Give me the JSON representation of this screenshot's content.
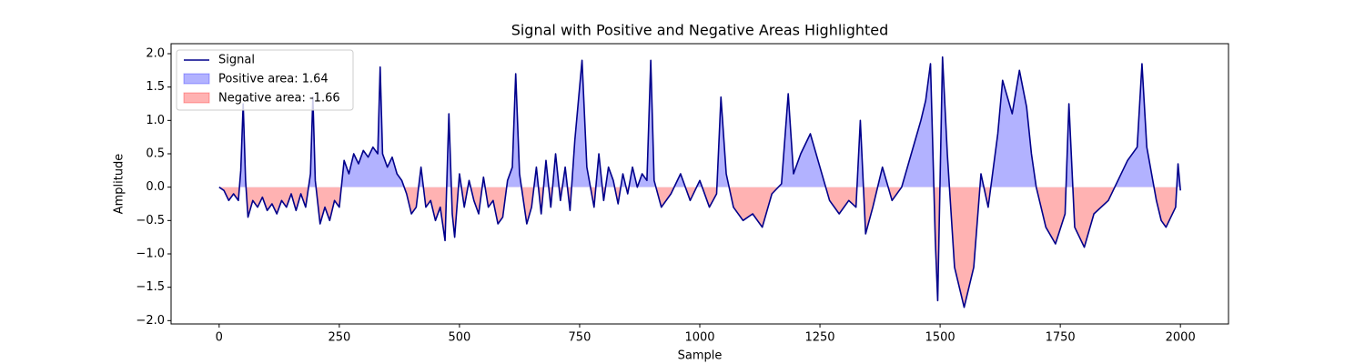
{
  "chart_data": {
    "type": "line",
    "title": "Signal with Positive and Negative Areas Highlighted",
    "x_label": "Sample",
    "y_label": "Amplitude",
    "x": [
      0,
      10,
      20,
      30,
      40,
      45,
      50,
      55,
      60,
      70,
      80,
      90,
      100,
      110,
      120,
      130,
      140,
      150,
      160,
      170,
      180,
      190,
      195,
      200,
      210,
      220,
      230,
      240,
      250,
      260,
      270,
      280,
      290,
      300,
      310,
      320,
      330,
      335,
      340,
      350,
      360,
      370,
      380,
      390,
      400,
      410,
      420,
      430,
      440,
      450,
      460,
      470,
      478,
      485,
      490,
      500,
      510,
      520,
      530,
      540,
      550,
      560,
      570,
      580,
      590,
      600,
      610,
      617,
      625,
      640,
      650,
      660,
      670,
      680,
      690,
      700,
      710,
      720,
      730,
      740,
      755,
      765,
      780,
      790,
      800,
      810,
      820,
      830,
      840,
      850,
      860,
      870,
      880,
      890,
      898,
      905,
      920,
      940,
      960,
      980,
      1000,
      1020,
      1035,
      1044,
      1055,
      1070,
      1090,
      1110,
      1130,
      1150,
      1170,
      1184,
      1195,
      1210,
      1230,
      1250,
      1270,
      1290,
      1310,
      1325,
      1334,
      1345,
      1360,
      1380,
      1400,
      1420,
      1440,
      1460,
      1470,
      1480,
      1490,
      1495,
      1505,
      1515,
      1530,
      1550,
      1570,
      1585,
      1600,
      1620,
      1630,
      1650,
      1665,
      1680,
      1690,
      1700,
      1720,
      1740,
      1760,
      1768,
      1780,
      1800,
      1820,
      1850,
      1870,
      1890,
      1910,
      1920,
      1930,
      1950,
      1960,
      1970,
      1990,
      1995,
      2000
    ],
    "series": [
      {
        "name": "Signal",
        "color": "#00008b",
        "values": [
          0,
          -0.05,
          -0.2,
          -0.1,
          -0.2,
          0.25,
          1.25,
          0.1,
          -0.45,
          -0.2,
          -0.3,
          -0.15,
          -0.35,
          -0.25,
          -0.4,
          -0.2,
          -0.3,
          -0.1,
          -0.35,
          -0.1,
          -0.3,
          0.2,
          1.35,
          0.1,
          -0.55,
          -0.3,
          -0.5,
          -0.2,
          -0.3,
          0.4,
          0.2,
          0.5,
          0.35,
          0.55,
          0.45,
          0.6,
          0.5,
          1.8,
          0.5,
          0.3,
          0.45,
          0.2,
          0.1,
          -0.1,
          -0.4,
          -0.3,
          0.3,
          -0.3,
          -0.2,
          -0.5,
          -0.3,
          -0.8,
          1.1,
          -0.4,
          -0.75,
          0.2,
          -0.3,
          0.1,
          -0.2,
          -0.4,
          0.15,
          -0.3,
          -0.2,
          -0.55,
          -0.45,
          0.1,
          0.3,
          1.7,
          0.2,
          -0.55,
          -0.3,
          0.3,
          -0.4,
          0.4,
          -0.3,
          0.5,
          -0.2,
          0.3,
          -0.35,
          0.7,
          1.9,
          0.3,
          -0.3,
          0.5,
          -0.2,
          0.3,
          0.1,
          -0.25,
          0.2,
          -0.1,
          0.3,
          0,
          0.2,
          0.1,
          1.9,
          0.1,
          -0.3,
          -0.1,
          0.2,
          -0.2,
          0.1,
          -0.3,
          -0.1,
          1.35,
          0.2,
          -0.3,
          -0.5,
          -0.4,
          -0.6,
          -0.1,
          0.05,
          1.4,
          0.2,
          0.5,
          0.8,
          0.3,
          -0.2,
          -0.4,
          -0.2,
          -0.3,
          1.0,
          -0.7,
          -0.3,
          0.3,
          -0.2,
          0,
          0.5,
          1.0,
          1.3,
          1.85,
          -0.8,
          -1.7,
          1.95,
          0.5,
          -1.2,
          -1.8,
          -1.2,
          0.2,
          -0.3,
          0.8,
          1.6,
          1.1,
          1.75,
          1.2,
          0.5,
          0,
          -0.6,
          -0.85,
          -0.4,
          1.25,
          -0.6,
          -0.9,
          -0.4,
          -0.2,
          0.1,
          0.4,
          0.6,
          1.85,
          0.6,
          -0.2,
          -0.5,
          -0.6,
          -0.3,
          0.35,
          -0.05
        ]
      }
    ],
    "fills": [
      {
        "name": "Positive area: 1.64",
        "color": "#0000ff",
        "opacity": 0.3,
        "side": "positive"
      },
      {
        "name": "Negative area: -1.66",
        "color": "#ff0000",
        "opacity": 0.3,
        "side": "negative"
      }
    ],
    "xlim": [
      -100,
      2100
    ],
    "ylim": [
      -2.05,
      2.15
    ],
    "xticks": [
      0,
      250,
      500,
      750,
      1000,
      1250,
      1500,
      1750,
      2000
    ],
    "yticks": [
      {
        "value": -2,
        "label": "−2.0"
      },
      {
        "value": -1.5,
        "label": "−1.5"
      },
      {
        "value": -1,
        "label": "−1.0"
      },
      {
        "value": -0.5,
        "label": "−0.5"
      },
      {
        "value": 0,
        "label": "0.0"
      },
      0.5,
      {
        "value": 1,
        "label": "1.0"
      },
      1.5,
      {
        "value": 2,
        "label": "2.0"
      }
    ],
    "legend": "upper left",
    "grid": false
  }
}
